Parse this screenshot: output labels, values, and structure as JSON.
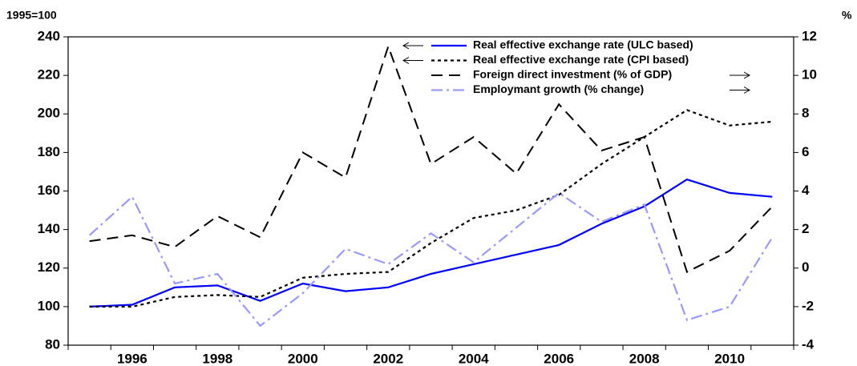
{
  "chart_data": {
    "type": "line",
    "y_axis_label": "1995=100",
    "y2_axis_label": "%",
    "categories": [
      null,
      "1996",
      null,
      "1998",
      null,
      "2000",
      null,
      "2002",
      null,
      "2004",
      null,
      "2006",
      null,
      "2008",
      null,
      "2010",
      null
    ],
    "series": [
      {
        "name": "Real effective exchange rate (ULC based)",
        "color": "#0000ff",
        "values": [
          100,
          101,
          110,
          111,
          103,
          112,
          108,
          110,
          117,
          122,
          127,
          132,
          143,
          152,
          166,
          159,
          157
        ]
      },
      {
        "name": "Real effective exchange rate (CPI based)",
        "color": "#000000",
        "values": [
          100,
          100,
          105,
          106,
          105,
          115,
          117,
          118,
          133,
          146,
          150,
          158,
          174,
          188,
          202,
          194,
          196
        ]
      },
      {
        "name": "Foreign direct investment (% of GDP)",
        "color": "#000000",
        "axis": "y2",
        "values": [
          1.4,
          1.7,
          1.1,
          2.7,
          1.6,
          6.0,
          4.7,
          11.5,
          5.4,
          6.8,
          4.9,
          8.5,
          6.1,
          6.8,
          -0.2,
          0.9,
          3.2
        ]
      },
      {
        "name": "Employmant growth (% change)",
        "color": "#9999ff",
        "axis": "y2",
        "values": [
          1.7,
          3.7,
          -0.8,
          -0.3,
          -3.0,
          -1.3,
          1.0,
          0.2,
          1.8,
          0.3,
          2.1,
          3.9,
          2.4,
          3.3,
          -2.7,
          -2.0,
          1.6
        ]
      }
    ],
    "ylim": [
      80,
      240
    ],
    "yticks": [
      80,
      100,
      120,
      140,
      160,
      180,
      200,
      220,
      240
    ],
    "y2lim": [
      -4,
      12
    ],
    "y2ticks": [
      -4,
      -2,
      0,
      2,
      4,
      6,
      8,
      10,
      12
    ],
    "grid": false
  }
}
